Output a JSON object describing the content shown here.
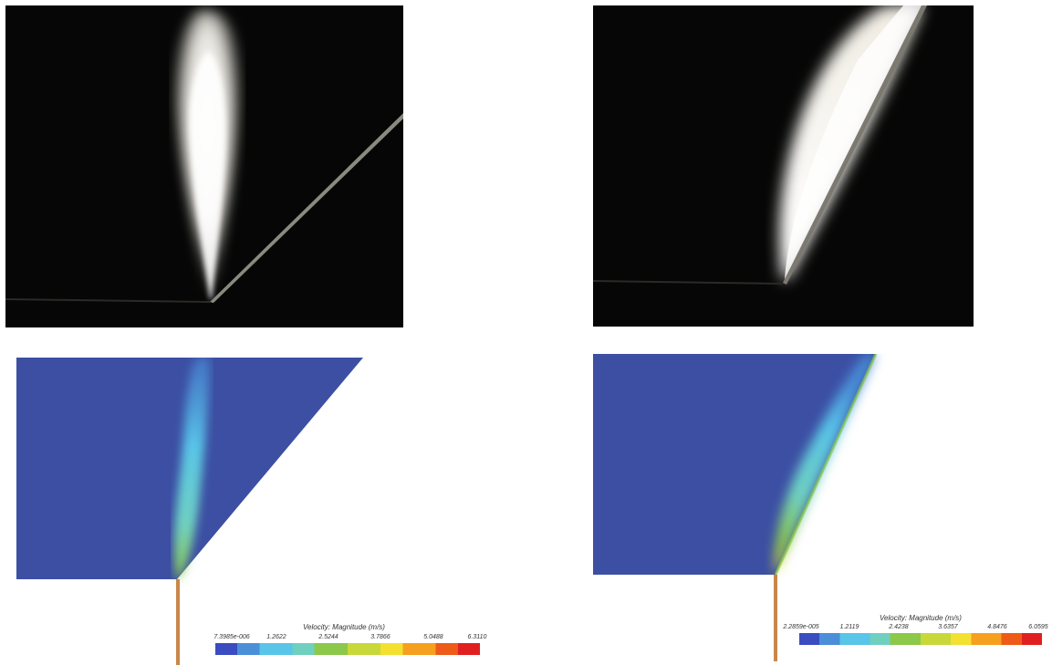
{
  "panels": {
    "photo_left": {
      "kind": "photograph",
      "subject": "spray-jet-vertical"
    },
    "photo_right": {
      "kind": "photograph",
      "subject": "spray-jet-wall-attached"
    },
    "sim_left": {
      "kind": "cfd-contour",
      "colors": {
        "background_field": "#3c4fa3",
        "nozzle": "#c8874a"
      },
      "legend": {
        "title": "Velocity: Magnitude (m/s)",
        "ticks": [
          "7.3985e-006",
          "1.2622",
          "2.5244",
          "3.7866",
          "5.0488",
          "6.3110"
        ]
      }
    },
    "sim_right": {
      "kind": "cfd-contour",
      "colors": {
        "background_field": "#3c4fa3",
        "nozzle": "#c8874a"
      },
      "legend": {
        "title": "Velocity: Magnitude (m/s)",
        "ticks": [
          "2.2859e-005",
          "1.2119",
          "2.4238",
          "3.6357",
          "4.8476",
          "6.0595"
        ]
      }
    }
  },
  "colormap": [
    "#3b4cc0",
    "#4a8fd8",
    "#59c5e8",
    "#6fd0c0",
    "#8cc84a",
    "#c8d83a",
    "#f4e030",
    "#f6a020",
    "#ee5a18",
    "#e02020"
  ]
}
